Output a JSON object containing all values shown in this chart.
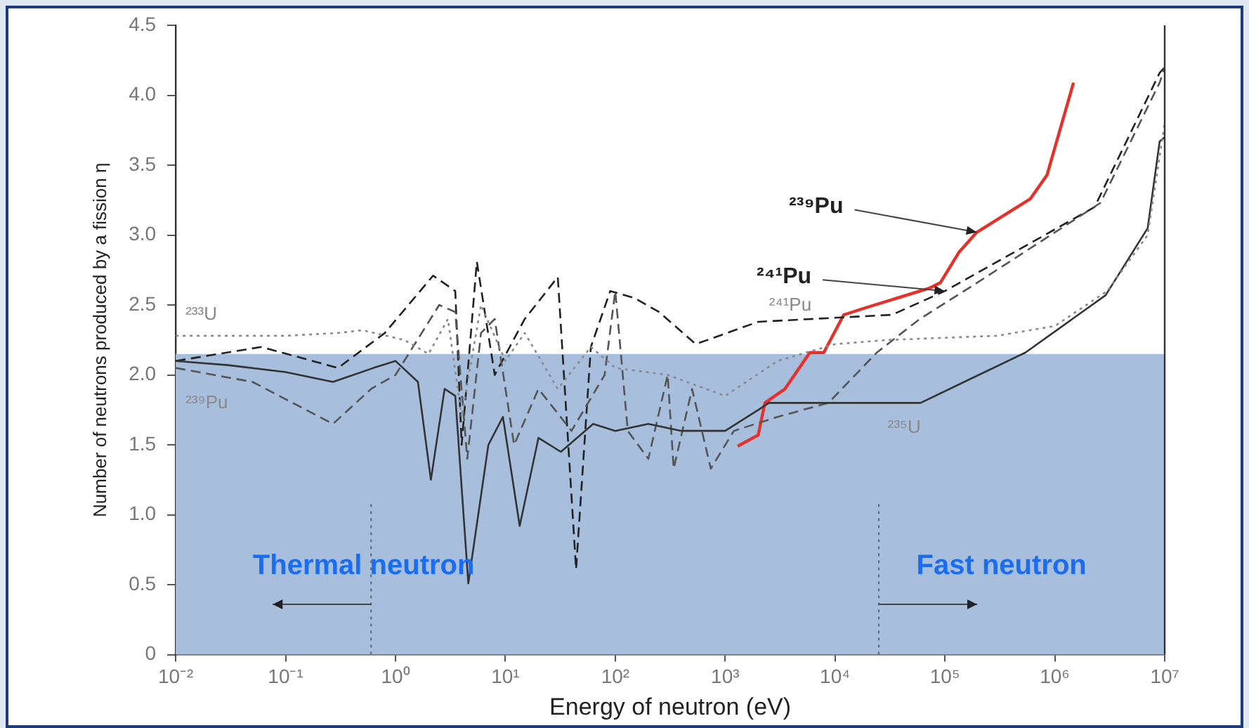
{
  "chart_data": {
    "type": "line",
    "xlabel": "Energy of neutron (eV)",
    "ylabel": "Number of neutrons produced by a fission η",
    "log": "x",
    "grid": false,
    "legend": false,
    "marker": "none",
    "xlim": [
      0.01,
      10000000
    ],
    "ylim": [
      0,
      4.5
    ],
    "xticks": [
      {
        "value": 0.01,
        "label": "10⁻²"
      },
      {
        "value": 0.1,
        "label": "10⁻¹"
      },
      {
        "value": 1,
        "label": "10⁰"
      },
      {
        "value": 10,
        "label": "10¹"
      },
      {
        "value": 100,
        "label": "10²"
      },
      {
        "value": 1000,
        "label": "10³"
      },
      {
        "value": 10000,
        "label": "10⁴"
      },
      {
        "value": 100000,
        "label": "10⁵"
      },
      {
        "value": 1000000,
        "label": "10⁶"
      },
      {
        "value": 10000000,
        "label": "10⁷"
      }
    ],
    "yticks": [
      0,
      0.5,
      {
        "value": 1,
        "label": "1.0"
      },
      1.5,
      {
        "value": 2,
        "label": "2.0"
      },
      2.5,
      {
        "value": 3,
        "label": "3.0"
      },
      3.5,
      {
        "value": 4,
        "label": "4.0"
      },
      4.5
    ],
    "series": [
      {
        "name": "²³³U",
        "color": "#8a8a8a",
        "line_style": "dotted",
        "x": [
          0.01,
          0.1,
          0.3,
          0.5,
          1.2,
          2,
          3,
          4,
          6,
          10,
          15,
          30,
          60,
          100,
          300,
          1000,
          3000,
          10000,
          30000,
          300000,
          1000000,
          3000000,
          7000000,
          10000000
        ],
        "values": [
          2.28,
          2.28,
          2.3,
          2.32,
          2.25,
          2.15,
          2.4,
          1.7,
          2.5,
          2.1,
          2.3,
          1.9,
          2.2,
          2.05,
          2.0,
          1.85,
          2.1,
          2.22,
          2.25,
          2.28,
          2.35,
          2.6,
          3.0,
          3.8
        ]
      },
      {
        "name": "²³⁵U",
        "color": "#333333",
        "line_style": "solid",
        "x": [
          0.01,
          0.03,
          0.1,
          0.27,
          0.63,
          1,
          1.6,
          2.1,
          2.8,
          3.5,
          4.6,
          7,
          9.5,
          13.5,
          20,
          32,
          63,
          100,
          200,
          400,
          1000,
          2000,
          2500,
          60000,
          180000,
          540000,
          2900000,
          7000000,
          9000000,
          10000000
        ],
        "values": [
          2.1,
          2.07,
          2.02,
          1.95,
          2.05,
          2.1,
          1.95,
          1.25,
          1.9,
          1.85,
          0.51,
          1.5,
          1.7,
          0.92,
          1.55,
          1.45,
          1.65,
          1.6,
          1.65,
          1.6,
          1.6,
          1.75,
          1.8,
          1.8,
          1.98,
          2.16,
          2.57,
          3.05,
          3.67,
          3.7
        ]
      },
      {
        "name": "²³⁹Pu",
        "color": "#555555",
        "line_style": "dashed",
        "x": [
          0.01,
          0.05,
          0.27,
          0.6,
          1,
          2.5,
          3.5,
          4.5,
          6,
          8,
          12,
          20,
          40,
          80,
          100,
          130,
          200,
          300,
          340,
          500,
          740,
          1200,
          3000,
          8700,
          24000,
          59000,
          180000,
          2600000,
          9000000,
          10000000
        ],
        "values": [
          2.05,
          1.95,
          1.65,
          1.9,
          2.0,
          2.5,
          2.45,
          1.4,
          2.3,
          2.4,
          1.5,
          1.9,
          1.6,
          2.0,
          2.6,
          1.6,
          1.4,
          2.0,
          1.33,
          1.9,
          1.33,
          1.6,
          1.7,
          1.8,
          2.16,
          2.4,
          2.64,
          3.23,
          4.09,
          4.2
        ]
      },
      {
        "name": "²⁴¹Pu",
        "color": "#222222",
        "line_style": "dashed",
        "x": [
          0.01,
          0.06,
          0.3,
          0.8,
          2.2,
          3.5,
          4,
          5.5,
          8,
          15,
          30,
          44,
          60,
          90,
          150,
          250,
          540,
          2000,
          33000,
          100000,
          2300000,
          9000000,
          10000000
        ],
        "values": [
          2.1,
          2.2,
          2.05,
          2.3,
          2.71,
          2.6,
          1.5,
          2.81,
          2.0,
          2.4,
          2.7,
          0.61,
          2.2,
          2.6,
          2.55,
          2.45,
          2.22,
          2.38,
          2.43,
          2.6,
          3.2,
          4.16,
          4.2
        ]
      },
      {
        "color": "#e8302a",
        "line_style": "solid",
        "x": [
          1300,
          2000,
          2300,
          3500,
          5900,
          7900,
          12000,
          19000,
          72000,
          91000,
          135000,
          195000,
          600000,
          850000,
          1480000
        ],
        "values": [
          1.49,
          1.57,
          1.8,
          1.9,
          2.16,
          2.16,
          2.43,
          2.48,
          2.62,
          2.66,
          2.88,
          3.02,
          3.26,
          3.43,
          4.09
        ]
      }
    ],
    "bands": [
      {
        "axis": "y",
        "from": 0,
        "to": 2.15,
        "color": "#a7bfdd"
      }
    ],
    "ref_lines": [
      {
        "axis": "x",
        "value": 0.6,
        "color": "#666666",
        "line_style": "dotted"
      },
      {
        "axis": "x",
        "value": 25000,
        "color": "#666666",
        "line_style": "dotted"
      }
    ],
    "annotations": [
      "Thermal neutron",
      "Fast neutron",
      {
        "text": "²³⁹Pu",
        "x": 195000,
        "y": 3.02
      },
      {
        "text": "²⁴¹Pu",
        "x": 100000,
        "y": 2.6
      }
    ]
  }
}
